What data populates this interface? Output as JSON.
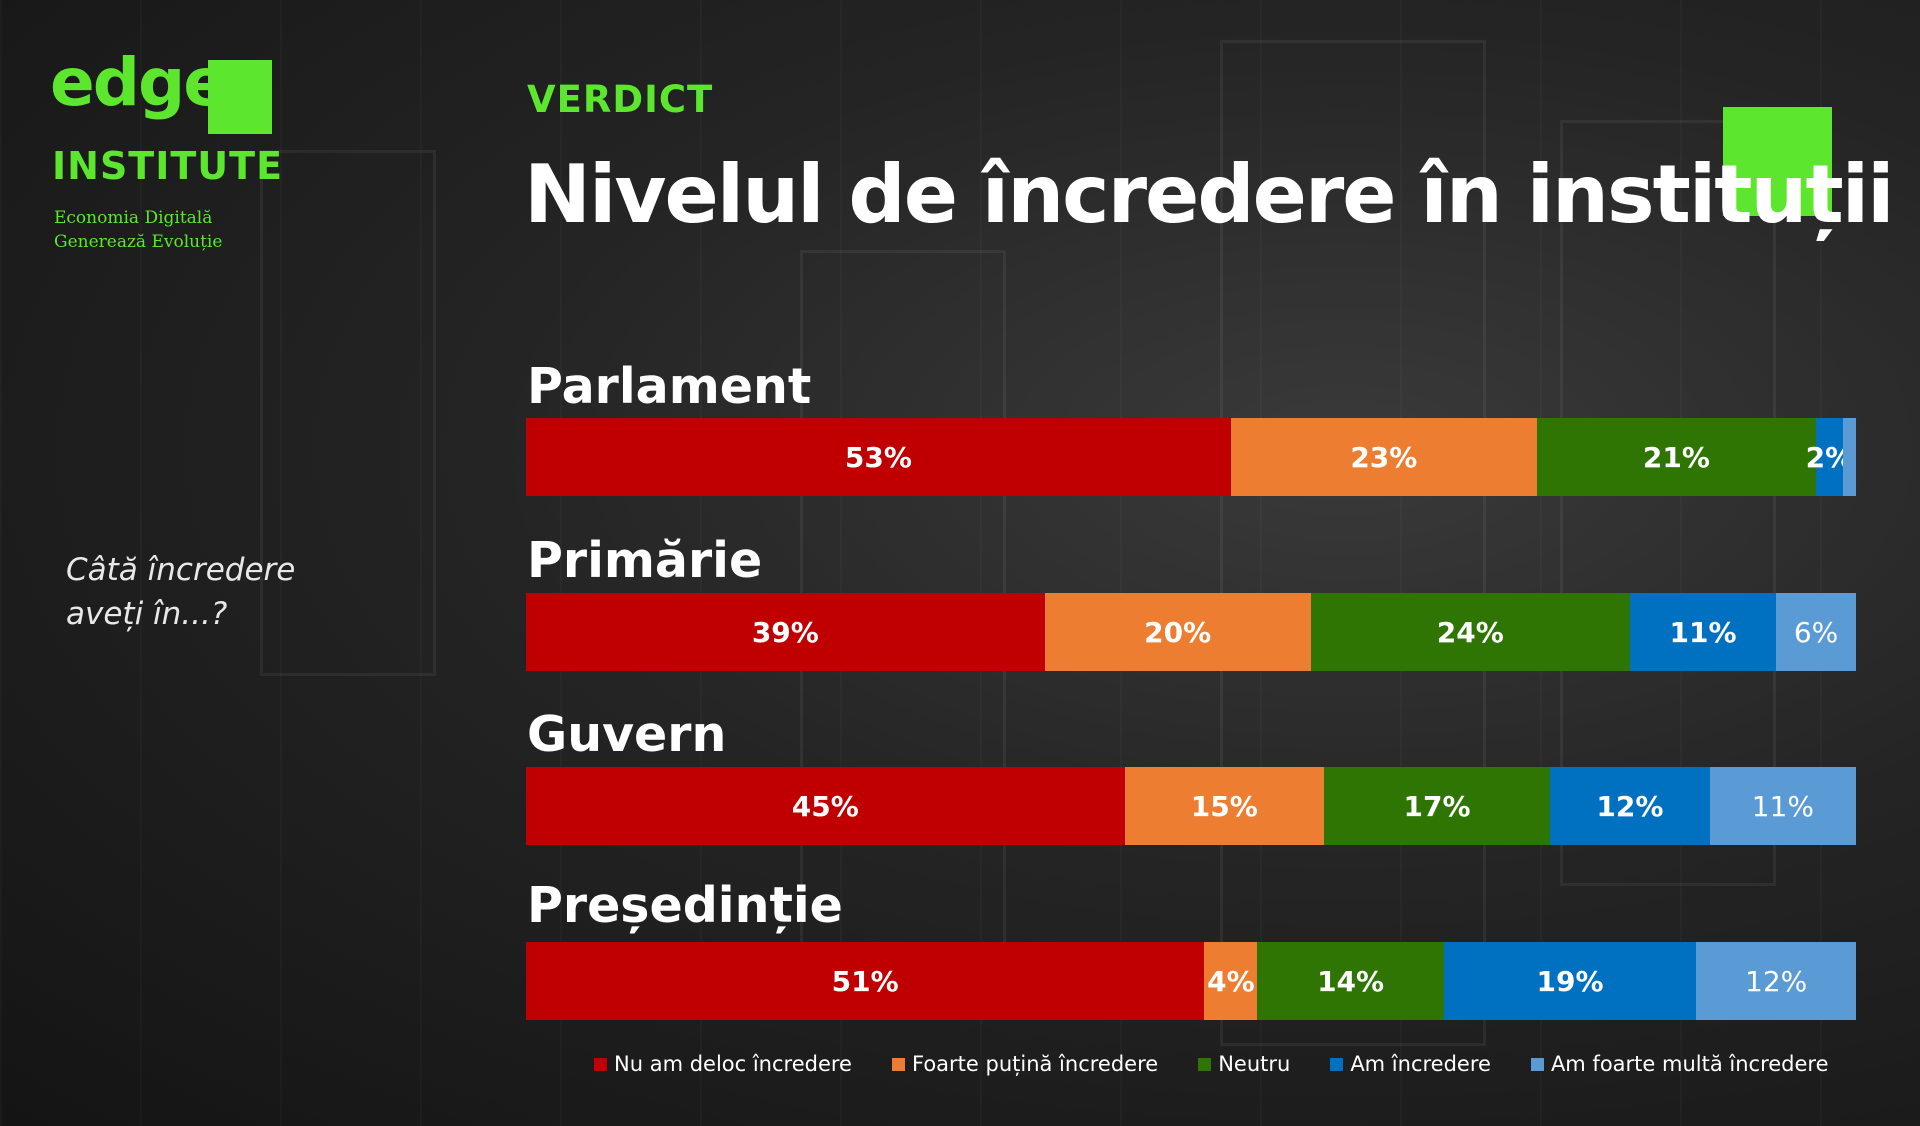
{
  "logo": {
    "brand": "edge",
    "institute": "INSTITUTE",
    "tagline_1": "Economia Digitală",
    "tagline_2": "Generează Evoluție",
    "accent": "#5ce62e"
  },
  "question": {
    "line_1": "Câtă încredere",
    "line_2": "aveți în...?"
  },
  "chart_data": {
    "type": "bar",
    "orientation": "horizontal-stacked-100",
    "kicker": "VERDICT",
    "title": "Nivelul de încredere în instituții",
    "categories": [
      "Parlament",
      "Primărie",
      "Guvern",
      "Președinție"
    ],
    "series": [
      {
        "name": "Nu am deloc încredere",
        "color": "#c00000",
        "values": [
          53,
          39,
          45,
          51
        ]
      },
      {
        "name": "Foarte puțină încredere",
        "color": "#ed7d31",
        "values": [
          23,
          20,
          15,
          4
        ]
      },
      {
        "name": "Neutru",
        "color": "#2e7504",
        "values": [
          21,
          24,
          17,
          14
        ]
      },
      {
        "name": "Am încredere",
        "color": "#0070c0",
        "values": [
          2,
          11,
          12,
          19
        ]
      },
      {
        "name": "Am foarte multă încredere",
        "color": "#5b9bd5",
        "values": [
          1,
          6,
          11,
          12
        ]
      }
    ],
    "labels": [
      [
        "53%",
        "23%",
        "21%",
        "2%",
        ""
      ],
      [
        "39%",
        "20%",
        "24%",
        "11%",
        "6%"
      ],
      [
        "45%",
        "15%",
        "17%",
        "12%",
        "11%"
      ],
      [
        "51%",
        "4%",
        "14%",
        "19%",
        "12%"
      ]
    ],
    "legend": "bottom"
  }
}
